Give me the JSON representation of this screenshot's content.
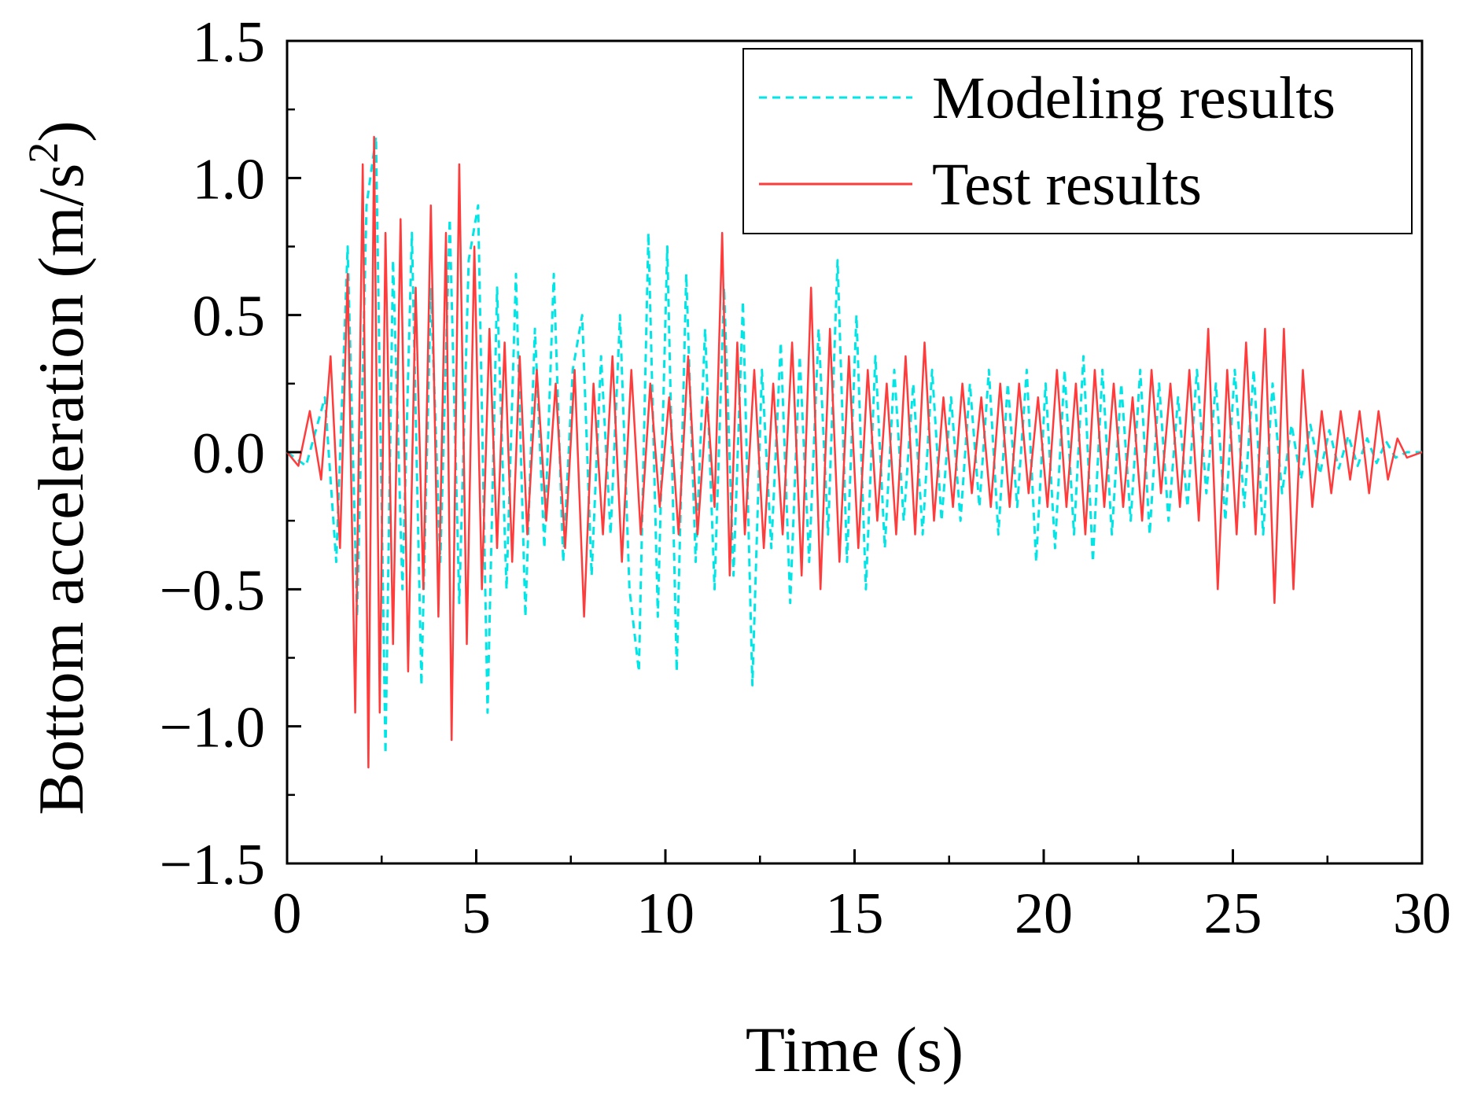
{
  "chart_data": {
    "type": "line",
    "title": "",
    "xlabel": "Time (s)",
    "ylabel_main": "Bottom acceleration (m/s",
    "ylabel_sup": "2",
    "ylabel_close": ")",
    "xlim": [
      0,
      30
    ],
    "ylim": [
      -1.5,
      1.5
    ],
    "grid": false,
    "legend_position": "top-right",
    "x_ticks": [
      0,
      5,
      10,
      15,
      20,
      25,
      30
    ],
    "x_tick_labels": [
      "0",
      "5",
      "10",
      "15",
      "20",
      "25",
      "30"
    ],
    "y_ticks": [
      -1.5,
      -1.0,
      -0.5,
      0.0,
      0.5,
      1.0,
      1.5
    ],
    "y_tick_labels": [
      "−1.5",
      "−1.0",
      "−0.5",
      "0.0",
      "0.5",
      "1.0",
      "1.5"
    ],
    "series": [
      {
        "name": "Modeling results",
        "color": "#00e5e5",
        "style": "dashed",
        "x": [
          0,
          0.5,
          1.0,
          1.3,
          1.6,
          1.85,
          2.1,
          2.35,
          2.6,
          2.8,
          3.05,
          3.3,
          3.55,
          3.8,
          4.05,
          4.3,
          4.55,
          4.8,
          5.05,
          5.3,
          5.55,
          5.8,
          6.05,
          6.3,
          6.55,
          6.8,
          7.05,
          7.3,
          7.55,
          7.8,
          8.05,
          8.3,
          8.55,
          8.8,
          9.05,
          9.3,
          9.55,
          9.8,
          10.05,
          10.3,
          10.55,
          10.8,
          11.05,
          11.3,
          11.55,
          11.8,
          12.05,
          12.3,
          12.55,
          12.8,
          13.05,
          13.3,
          13.55,
          13.8,
          14.05,
          14.3,
          14.55,
          14.8,
          15.05,
          15.3,
          15.55,
          15.8,
          16.05,
          16.3,
          16.55,
          16.8,
          17.05,
          17.3,
          17.55,
          17.8,
          18.05,
          18.3,
          18.55,
          18.8,
          19.05,
          19.3,
          19.55,
          19.8,
          20.05,
          20.3,
          20.55,
          20.8,
          21.05,
          21.3,
          21.55,
          21.8,
          22.05,
          22.3,
          22.55,
          22.8,
          23.05,
          23.3,
          23.55,
          23.8,
          24.05,
          24.3,
          24.55,
          24.8,
          25.05,
          25.3,
          25.55,
          25.8,
          26.05,
          26.3,
          26.55,
          26.8,
          27.05,
          27.3,
          27.55,
          27.8,
          28.05,
          28.3,
          28.55,
          28.8,
          29.05,
          29.3,
          29.6,
          30.0
        ],
        "y": [
          0.0,
          -0.05,
          0.2,
          -0.4,
          0.75,
          -0.6,
          0.9,
          1.15,
          -1.1,
          0.7,
          -0.5,
          0.8,
          -0.85,
          0.6,
          -0.4,
          0.85,
          -0.55,
          0.7,
          0.9,
          -0.95,
          0.6,
          -0.5,
          0.65,
          -0.6,
          0.45,
          -0.35,
          0.65,
          -0.4,
          0.3,
          0.5,
          -0.45,
          0.35,
          -0.3,
          0.5,
          -0.5,
          -0.8,
          0.8,
          -0.6,
          0.75,
          -0.8,
          0.65,
          -0.4,
          0.45,
          -0.5,
          0.6,
          -0.45,
          0.55,
          -0.85,
          0.3,
          -0.35,
          0.4,
          -0.55,
          0.35,
          -0.4,
          0.45,
          -0.3,
          0.7,
          -0.4,
          0.5,
          -0.5,
          0.35,
          -0.35,
          0.3,
          -0.25,
          0.25,
          -0.3,
          0.3,
          -0.25,
          0.2,
          -0.25,
          0.25,
          -0.2,
          0.3,
          -0.3,
          0.25,
          -0.2,
          0.3,
          -0.4,
          0.25,
          -0.35,
          0.3,
          -0.3,
          0.35,
          -0.4,
          0.3,
          -0.3,
          0.25,
          -0.25,
          0.3,
          -0.3,
          0.25,
          -0.25,
          0.2,
          -0.2,
          0.3,
          -0.15,
          0.25,
          -0.25,
          0.3,
          -0.2,
          0.3,
          -0.3,
          0.25,
          -0.15,
          0.1,
          -0.1,
          0.1,
          -0.08,
          0.08,
          -0.06,
          0.06,
          -0.05,
          0.05,
          -0.04,
          0.04,
          -0.02,
          0.0,
          0.0
        ]
      },
      {
        "name": "Test results",
        "color": "#ff3b3b",
        "style": "solid",
        "x": [
          0,
          0.3,
          0.6,
          0.9,
          1.15,
          1.4,
          1.6,
          1.8,
          2.0,
          2.15,
          2.3,
          2.45,
          2.6,
          2.8,
          3.0,
          3.2,
          3.4,
          3.6,
          3.8,
          4.0,
          4.2,
          4.35,
          4.55,
          4.75,
          4.95,
          5.15,
          5.35,
          5.55,
          5.75,
          5.95,
          6.15,
          6.35,
          6.6,
          6.85,
          7.1,
          7.35,
          7.6,
          7.85,
          8.1,
          8.35,
          8.6,
          8.85,
          9.1,
          9.35,
          9.6,
          9.85,
          10.1,
          10.35,
          10.6,
          10.85,
          11.1,
          11.3,
          11.5,
          11.7,
          11.9,
          12.1,
          12.35,
          12.6,
          12.85,
          13.1,
          13.35,
          13.6,
          13.85,
          14.1,
          14.35,
          14.6,
          14.85,
          15.1,
          15.35,
          15.6,
          15.85,
          16.1,
          16.35,
          16.6,
          16.85,
          17.1,
          17.35,
          17.6,
          17.85,
          18.1,
          18.35,
          18.6,
          18.85,
          19.1,
          19.35,
          19.6,
          19.85,
          20.1,
          20.35,
          20.6,
          20.85,
          21.1,
          21.35,
          21.6,
          21.85,
          22.1,
          22.35,
          22.6,
          22.85,
          23.1,
          23.35,
          23.6,
          23.85,
          24.1,
          24.35,
          24.6,
          24.85,
          25.1,
          25.35,
          25.6,
          25.85,
          26.1,
          26.35,
          26.6,
          26.85,
          27.1,
          27.35,
          27.6,
          27.85,
          28.1,
          28.35,
          28.6,
          28.85,
          29.1,
          29.35,
          29.6,
          30.0
        ],
        "y": [
          0.0,
          -0.05,
          0.15,
          -0.1,
          0.35,
          -0.35,
          0.65,
          -0.95,
          1.05,
          -1.15,
          1.15,
          -0.95,
          0.8,
          -0.7,
          0.85,
          -0.8,
          0.6,
          -0.5,
          0.9,
          -0.6,
          0.8,
          -1.05,
          1.05,
          -0.7,
          0.75,
          -0.5,
          0.45,
          -0.35,
          0.4,
          -0.4,
          0.35,
          -0.3,
          0.3,
          -0.25,
          0.25,
          -0.35,
          0.3,
          -0.6,
          0.25,
          -0.3,
          0.35,
          -0.4,
          0.3,
          -0.3,
          0.25,
          -0.2,
          0.2,
          -0.3,
          0.35,
          -0.3,
          0.2,
          -0.2,
          0.8,
          -0.45,
          0.4,
          -0.3,
          0.3,
          -0.35,
          0.25,
          -0.3,
          0.4,
          -0.45,
          0.6,
          -0.5,
          0.45,
          -0.4,
          0.35,
          -0.35,
          0.3,
          -0.25,
          0.25,
          -0.3,
          0.35,
          -0.3,
          0.4,
          -0.25,
          0.2,
          -0.2,
          0.25,
          -0.15,
          0.2,
          -0.2,
          0.25,
          -0.2,
          0.25,
          -0.15,
          0.2,
          -0.2,
          0.3,
          -0.2,
          0.25,
          -0.3,
          0.3,
          -0.2,
          0.25,
          -0.2,
          0.2,
          -0.25,
          0.3,
          -0.15,
          0.25,
          -0.2,
          0.3,
          -0.25,
          0.45,
          -0.5,
          0.3,
          -0.3,
          0.4,
          -0.3,
          0.45,
          -0.55,
          0.45,
          -0.5,
          0.3,
          -0.2,
          0.15,
          -0.15,
          0.15,
          -0.1,
          0.15,
          -0.15,
          0.15,
          -0.1,
          0.05,
          -0.02,
          0.0
        ]
      }
    ]
  }
}
